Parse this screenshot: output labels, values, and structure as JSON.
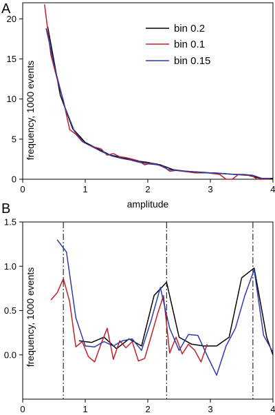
{
  "chart_data": [
    {
      "type": "line",
      "panel_label": "A",
      "xlabel": "amplitude",
      "ylabel": "frequency, 1000 events",
      "xlim": [
        0,
        4
      ],
      "ylim": [
        0,
        22
      ],
      "xticks": [
        0,
        1,
        2,
        3,
        4
      ],
      "yticks": [
        0,
        5,
        10,
        15,
        20
      ],
      "grid": false,
      "legend": {
        "placement": "top-right"
      },
      "series": [
        {
          "name": "bin 0.2",
          "color": "#000000",
          "x": [
            0.4,
            0.6,
            0.8,
            1.0,
            1.2,
            1.4,
            1.6,
            1.8,
            2.0,
            2.2,
            2.4,
            2.6,
            2.8,
            3.0,
            3.2,
            3.4,
            3.6,
            3.8,
            4.0
          ],
          "y": [
            19.0,
            10.5,
            6.3,
            4.6,
            3.8,
            3.0,
            2.7,
            2.3,
            2.1,
            1.8,
            1.2,
            1.0,
            0.9,
            0.8,
            0.7,
            0.6,
            0.5,
            0.1,
            0.1
          ]
        },
        {
          "name": "bin 0.1",
          "color": "#c0202a",
          "x": [
            0.35,
            0.45,
            0.55,
            0.65,
            0.75,
            0.85,
            0.95,
            1.05,
            1.15,
            1.25,
            1.35,
            1.45,
            1.55,
            1.65,
            1.75,
            1.85,
            1.95,
            2.05,
            2.15,
            2.25,
            2.35,
            2.45,
            2.55,
            2.65,
            2.75,
            2.85,
            2.95,
            3.05,
            3.15,
            3.25,
            3.35,
            3.45,
            3.55,
            3.65,
            3.75,
            3.85,
            3.95
          ],
          "y": [
            21.8,
            15.5,
            12.5,
            9.8,
            6.2,
            5.6,
            4.7,
            4.3,
            4.0,
            3.8,
            3.0,
            3.2,
            2.8,
            2.7,
            2.5,
            2.3,
            1.8,
            2.0,
            1.8,
            1.6,
            1.0,
            1.1,
            1.0,
            0.9,
            0.8,
            0.8,
            0.8,
            0.7,
            0.6,
            0.0,
            0.0,
            0.6,
            0.5,
            0.5,
            0.0,
            0.0,
            0.0
          ]
        },
        {
          "name": "bin 0.15",
          "color": "#2a3aa8",
          "x": [
            0.375,
            0.525,
            0.675,
            0.825,
            0.975,
            1.125,
            1.275,
            1.425,
            1.575,
            1.725,
            1.875,
            2.025,
            2.175,
            2.325,
            2.475,
            2.625,
            2.775,
            2.925,
            3.075,
            3.225,
            3.375,
            3.525,
            3.675,
            3.825,
            3.975
          ],
          "y": [
            18.8,
            13.5,
            9.0,
            6.0,
            4.6,
            4.0,
            3.4,
            2.9,
            2.6,
            2.4,
            2.1,
            1.9,
            1.8,
            1.2,
            1.1,
            1.0,
            0.9,
            0.8,
            0.8,
            0.7,
            0.6,
            0.6,
            0.5,
            0.1,
            0.1
          ]
        }
      ]
    },
    {
      "type": "line",
      "panel_label": "B",
      "xlabel": "",
      "ylabel": "frequency, 1000 events",
      "xlim": [
        0,
        4
      ],
      "ylim": [
        -0.5,
        1.5
      ],
      "xticks": [
        0,
        1,
        2,
        3,
        4
      ],
      "yticks": [
        0.0,
        0.5,
        1.0,
        1.5
      ],
      "ytick_labels": [
        "0.0",
        "0.5",
        "1.0",
        "1.5"
      ],
      "grid": false,
      "vertical_dashdot_lines_x": [
        0.65,
        2.3,
        3.68
      ],
      "series": [
        {
          "color": "#000000",
          "x": [
            0.9,
            1.1,
            1.3,
            1.5,
            1.7,
            1.9,
            2.1,
            2.3,
            2.5,
            2.7,
            2.9,
            3.1,
            3.3,
            3.5,
            3.7,
            3.9,
            4.0
          ],
          "y": [
            0.16,
            0.14,
            0.2,
            0.07,
            0.18,
            0.1,
            0.67,
            0.82,
            0.2,
            0.12,
            0.1,
            0.1,
            0.2,
            0.87,
            0.98,
            0.2,
            0.0
          ]
        },
        {
          "color": "#c0202a",
          "x": [
            0.45,
            0.55,
            0.65,
            0.75,
            0.85,
            0.95,
            1.05,
            1.15,
            1.25,
            1.35,
            1.45,
            1.55,
            1.65,
            1.75,
            1.85,
            1.95,
            2.05,
            2.15,
            2.25,
            2.35,
            2.45,
            2.55,
            2.65,
            2.75,
            2.85,
            2.95
          ],
          "y": [
            0.62,
            0.7,
            0.86,
            0.6,
            0.09,
            0.15,
            -0.02,
            -0.08,
            0.12,
            0.3,
            -0.05,
            0.16,
            0.08,
            0.15,
            -0.07,
            -0.04,
            0.2,
            0.45,
            0.67,
            0.02,
            0.2,
            0.01,
            0.12,
            0.05,
            -0.08,
            0.12
          ]
        },
        {
          "color": "#2a3aa8",
          "x": [
            0.55,
            0.7,
            0.85,
            1.0,
            1.15,
            1.3,
            1.45,
            1.6,
            1.75,
            1.9,
            2.05,
            2.2,
            2.35,
            2.5,
            2.65,
            2.8,
            2.95,
            3.1,
            3.25,
            3.4,
            3.55,
            3.7,
            3.85,
            4.0
          ],
          "y": [
            1.3,
            1.16,
            0.42,
            0.1,
            0.09,
            0.15,
            0.1,
            0.16,
            0.18,
            0.05,
            0.38,
            0.76,
            0.3,
            0.05,
            0.23,
            0.22,
            -0.01,
            -0.23,
            0.1,
            0.3,
            0.67,
            0.96,
            0.22,
            0.03
          ]
        }
      ]
    }
  ]
}
